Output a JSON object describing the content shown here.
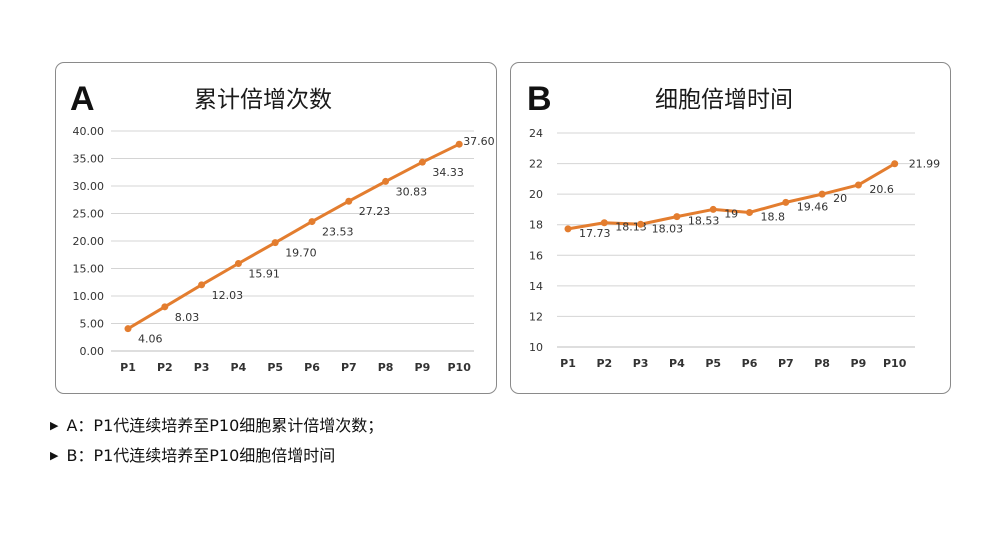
{
  "chart_data": [
    {
      "panel": "A",
      "type": "line",
      "title": "累计倍增次数",
      "categories": [
        "P1",
        "P2",
        "P3",
        "P4",
        "P5",
        "P6",
        "P7",
        "P8",
        "P9",
        "P10"
      ],
      "values": [
        4.06,
        8.03,
        12.03,
        15.91,
        19.7,
        23.53,
        27.23,
        30.83,
        34.33,
        37.6
      ],
      "value_labels": [
        "4.06",
        "8.03",
        "12.03",
        "15.91",
        "19.70",
        "23.53",
        "27.23",
        "30.83",
        "34.33",
        "37.60"
      ],
      "ylim": [
        0,
        40
      ],
      "yticks": [
        "0.00",
        "5.00",
        "10.00",
        "15.00",
        "20.00",
        "25.00",
        "30.00",
        "35.00",
        "40.00"
      ],
      "grid": true,
      "color": "#e37d2f"
    },
    {
      "panel": "B",
      "type": "line",
      "title": "细胞倍增时间",
      "categories": [
        "P1",
        "P2",
        "P3",
        "P4",
        "P5",
        "P6",
        "P7",
        "P8",
        "P9",
        "P10"
      ],
      "values": [
        17.73,
        18.13,
        18.03,
        18.53,
        19,
        18.8,
        19.46,
        20,
        20.6,
        21.99
      ],
      "value_labels": [
        "17.73",
        "18.13",
        "18.03",
        "18.53",
        "19",
        "18.8",
        "19.46",
        "20",
        "20.6",
        "21.99"
      ],
      "ylim": [
        10,
        24
      ],
      "yticks": [
        "10",
        "12",
        "14",
        "16",
        "18",
        "20",
        "22",
        "24"
      ],
      "grid": true,
      "color": "#e37d2f"
    }
  ],
  "captions": [
    {
      "marker": "▶",
      "text": "A：P1代连续培养至P10细胞累计倍增次数；"
    },
    {
      "marker": "▶",
      "text": "B：P1代连续培养至P10细胞倍增时间"
    }
  ]
}
